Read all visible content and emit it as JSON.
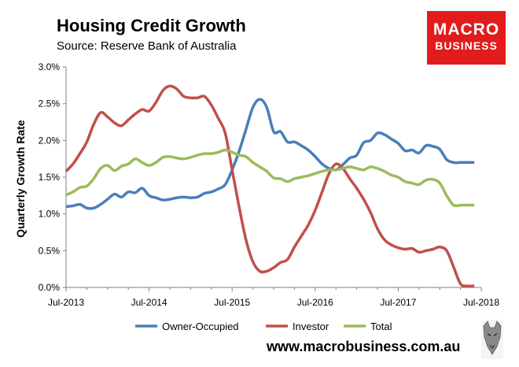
{
  "header": {
    "title": "Housing Credit Growth",
    "subtitle": "Source: Reserve Bank of Australia"
  },
  "logo": {
    "line1": "MACRO",
    "line2": "BUSINESS",
    "color": "#e21c1c"
  },
  "footer": {
    "url": "www.macrobusiness.com.au"
  },
  "chart_data": {
    "type": "line",
    "title": "Housing Credit Growth",
    "ylabel": "Quarterly Growth Rate",
    "xlabel": "",
    "x_ticks": [
      "Jul-2013",
      "Jul-2014",
      "Jul-2015",
      "Jul-2016",
      "Jul-2017",
      "Jul-2018"
    ],
    "y_ticks": [
      "0.0%",
      "0.5%",
      "1.0%",
      "1.5%",
      "2.0%",
      "2.5%",
      "3.0%"
    ],
    "ylim": [
      0,
      3.0
    ],
    "xlim": [
      "Jul-2013",
      "Jul-2018"
    ],
    "grid": false,
    "legend_position": "bottom",
    "x": [
      "Jul-2013",
      "Aug-2013",
      "Sep-2013",
      "Oct-2013",
      "Nov-2013",
      "Dec-2013",
      "Jan-2014",
      "Feb-2014",
      "Mar-2014",
      "Apr-2014",
      "May-2014",
      "Jun-2014",
      "Jul-2014",
      "Aug-2014",
      "Sep-2014",
      "Oct-2014",
      "Nov-2014",
      "Dec-2014",
      "Jan-2015",
      "Feb-2015",
      "Mar-2015",
      "Apr-2015",
      "May-2015",
      "Jun-2015",
      "Jul-2015",
      "Aug-2015",
      "Sep-2015",
      "Oct-2015",
      "Nov-2015",
      "Dec-2015",
      "Jan-2016",
      "Feb-2016",
      "Mar-2016",
      "Apr-2016",
      "May-2016",
      "Jun-2016",
      "Jul-2016",
      "Aug-2016",
      "Sep-2016",
      "Oct-2016",
      "Nov-2016",
      "Dec-2016",
      "Jan-2017",
      "Feb-2017",
      "Mar-2017",
      "Apr-2017",
      "May-2017",
      "Jun-2017",
      "Jul-2017",
      "Aug-2017",
      "Sep-2017",
      "Oct-2017",
      "Nov-2017",
      "Dec-2017",
      "Jan-2018",
      "Feb-2018",
      "Mar-2018",
      "Apr-2018",
      "May-2018",
      "Jun-2018"
    ],
    "series": [
      {
        "name": "Owner-Occupied",
        "color": "#4a7ebb",
        "values": [
          1.1,
          1.11,
          1.13,
          1.08,
          1.08,
          1.13,
          1.2,
          1.27,
          1.23,
          1.3,
          1.29,
          1.35,
          1.25,
          1.22,
          1.19,
          1.2,
          1.22,
          1.23,
          1.22,
          1.23,
          1.28,
          1.3,
          1.34,
          1.4,
          1.6,
          1.85,
          2.15,
          2.45,
          2.56,
          2.45,
          2.12,
          2.12,
          1.98,
          1.98,
          1.93,
          1.87,
          1.78,
          1.68,
          1.62,
          1.6,
          1.67,
          1.76,
          1.8,
          1.97,
          2.0,
          2.1,
          2.08,
          2.02,
          1.96,
          1.86,
          1.87,
          1.83,
          1.93,
          1.92,
          1.88,
          1.74,
          1.7,
          1.7,
          1.7,
          1.7
        ]
      },
      {
        "name": "Investor",
        "color": "#c0504d",
        "values": [
          1.58,
          1.68,
          1.82,
          1.98,
          2.22,
          2.38,
          2.32,
          2.24,
          2.2,
          2.28,
          2.36,
          2.42,
          2.4,
          2.52,
          2.68,
          2.74,
          2.7,
          2.6,
          2.58,
          2.58,
          2.6,
          2.48,
          2.3,
          2.1,
          1.6,
          1.1,
          0.65,
          0.35,
          0.22,
          0.22,
          0.27,
          0.34,
          0.38,
          0.55,
          0.7,
          0.85,
          1.05,
          1.3,
          1.55,
          1.68,
          1.62,
          1.48,
          1.35,
          1.2,
          1.02,
          0.8,
          0.65,
          0.58,
          0.54,
          0.52,
          0.53,
          0.48,
          0.5,
          0.52,
          0.55,
          0.5,
          0.28,
          0.05,
          0.02,
          0.02
        ]
      },
      {
        "name": "Total",
        "color": "#9bbb59",
        "values": [
          1.26,
          1.3,
          1.36,
          1.38,
          1.48,
          1.62,
          1.66,
          1.59,
          1.65,
          1.68,
          1.75,
          1.7,
          1.66,
          1.7,
          1.77,
          1.78,
          1.76,
          1.75,
          1.77,
          1.8,
          1.82,
          1.82,
          1.84,
          1.87,
          1.84,
          1.8,
          1.78,
          1.7,
          1.64,
          1.58,
          1.49,
          1.48,
          1.44,
          1.48,
          1.5,
          1.52,
          1.55,
          1.58,
          1.6,
          1.6,
          1.62,
          1.64,
          1.62,
          1.6,
          1.64,
          1.62,
          1.58,
          1.53,
          1.5,
          1.44,
          1.42,
          1.4,
          1.46,
          1.47,
          1.42,
          1.25,
          1.12,
          1.12,
          1.12,
          1.12
        ]
      }
    ]
  }
}
